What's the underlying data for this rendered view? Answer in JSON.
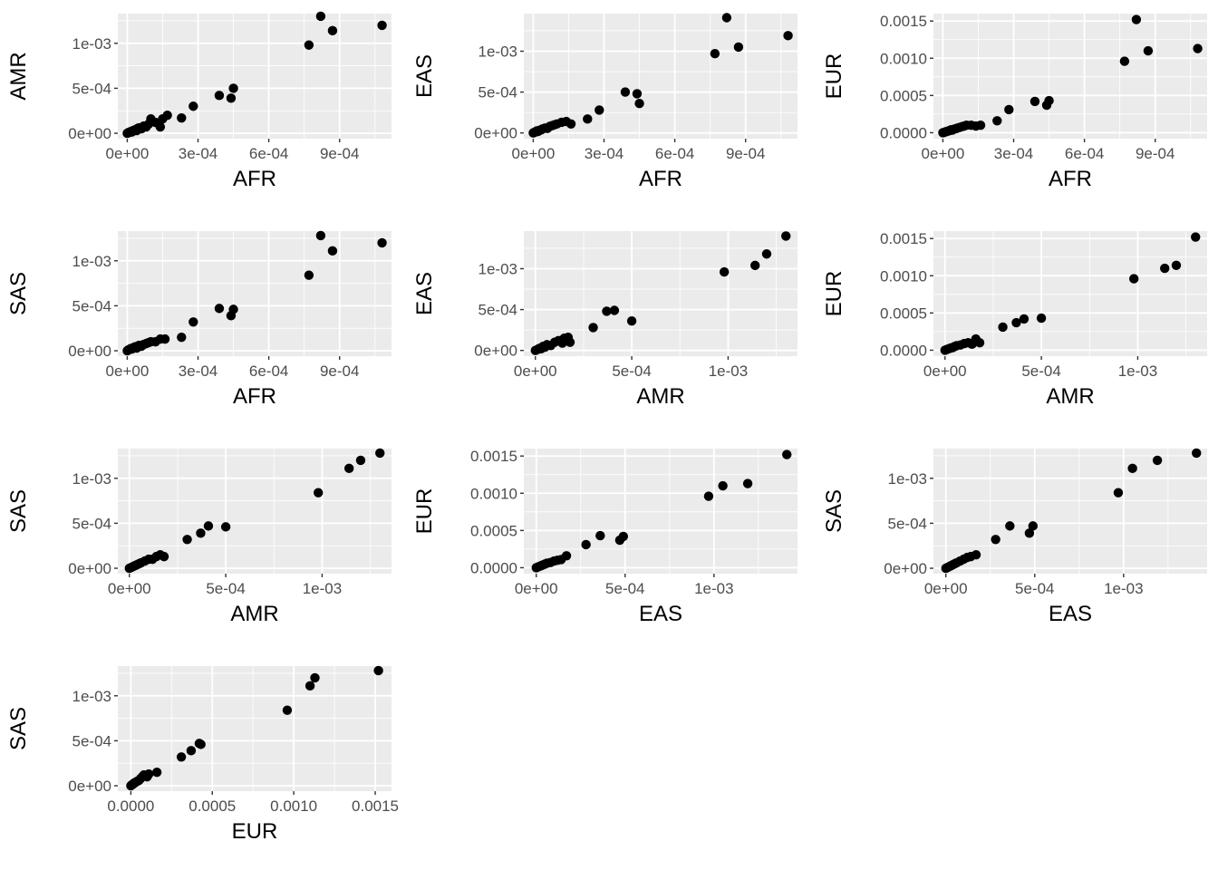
{
  "figure": {
    "panel_background": "#ebebeb",
    "grid_major": "#ffffff",
    "point_color": "#000000"
  },
  "chart_data": [
    {
      "type": "scatter",
      "xlabel": "AFR",
      "ylabel": "AMR",
      "xlim": [
        -4e-05,
        0.00112
      ],
      "ylim": [
        -6e-05,
        0.00133
      ],
      "xticks": [
        0,
        0.0003,
        0.0006,
        0.0009
      ],
      "xtick_labels": [
        "0e+00",
        "3e-04",
        "6e-04",
        "9e-04"
      ],
      "yticks": [
        0,
        0.0005,
        0.001
      ],
      "ytick_labels": [
        "0e+00",
        "5e-04",
        "1e-03"
      ],
      "points": [
        [
          0.0,
          0.0
        ],
        [
          5e-06,
          8e-06
        ],
        [
          1e-05,
          1e-05
        ],
        [
          1.5e-05,
          2e-05
        ],
        [
          2e-05,
          1.5e-05
        ],
        [
          2.5e-05,
          3e-05
        ],
        [
          3e-05,
          3.5e-05
        ],
        [
          3.5e-05,
          4e-05
        ],
        [
          4e-05,
          3e-05
        ],
        [
          4.5e-05,
          5.5e-05
        ],
        [
          5e-05,
          6e-05
        ],
        [
          6e-05,
          5e-05
        ],
        [
          7e-05,
          8e-05
        ],
        [
          8e-05,
          7e-05
        ],
        [
          9e-05,
          0.0001
        ],
        [
          0.0001,
          0.00016
        ],
        [
          0.00012,
          0.00012
        ],
        [
          0.00014,
          7e-05
        ],
        [
          0.00015,
          0.00016
        ],
        [
          0.00017,
          0.0002
        ],
        [
          0.00023,
          0.00017
        ],
        [
          0.00028,
          0.0003
        ],
        [
          0.00039,
          0.00042
        ],
        [
          0.00044,
          0.00039
        ],
        [
          0.00045,
          0.0005
        ],
        [
          0.00077,
          0.00098
        ],
        [
          0.00082,
          0.0013
        ],
        [
          0.00087,
          0.00114
        ],
        [
          0.00108,
          0.0012
        ]
      ]
    },
    {
      "type": "scatter",
      "xlabel": "AFR",
      "ylabel": "EAS",
      "xlim": [
        -4e-05,
        0.00112
      ],
      "ylim": [
        -7e-05,
        0.00146
      ],
      "xticks": [
        0,
        0.0003,
        0.0006,
        0.0009
      ],
      "xtick_labels": [
        "0e+00",
        "3e-04",
        "6e-04",
        "9e-04"
      ],
      "yticks": [
        0,
        0.0005,
        0.001
      ],
      "ytick_labels": [
        "0e+00",
        "5e-04",
        "1e-03"
      ],
      "points": [
        [
          0.0,
          0.0
        ],
        [
          5e-06,
          8e-06
        ],
        [
          1e-05,
          1.2e-05
        ],
        [
          1.5e-05,
          2.5e-05
        ],
        [
          2e-05,
          1.8e-05
        ],
        [
          2.5e-05,
          3e-05
        ],
        [
          3e-05,
          3.5e-05
        ],
        [
          3.5e-05,
          4e-05
        ],
        [
          4e-05,
          5e-05
        ],
        [
          5e-05,
          6e-05
        ],
        [
          6e-05,
          5.5e-05
        ],
        [
          7e-05,
          8e-05
        ],
        [
          8e-05,
          9e-05
        ],
        [
          9e-05,
          0.0001
        ],
        [
          0.0001,
          0.00011
        ],
        [
          0.00012,
          0.00013
        ],
        [
          0.00014,
          0.00014
        ],
        [
          0.00016,
          0.00011
        ],
        [
          0.00023,
          0.00017
        ],
        [
          0.00028,
          0.00028
        ],
        [
          0.00039,
          0.0005
        ],
        [
          0.00044,
          0.00048
        ],
        [
          0.00045,
          0.00036
        ],
        [
          0.00077,
          0.00097
        ],
        [
          0.00082,
          0.00141
        ],
        [
          0.00087,
          0.00105
        ],
        [
          0.00108,
          0.00119
        ]
      ]
    },
    {
      "type": "scatter",
      "xlabel": "AFR",
      "ylabel": "EUR",
      "xlim": [
        -4e-05,
        0.00112
      ],
      "ylim": [
        -8e-05,
        0.0016
      ],
      "xticks": [
        0,
        0.0003,
        0.0006,
        0.0009
      ],
      "xtick_labels": [
        "0e+00",
        "3e-04",
        "6e-04",
        "9e-04"
      ],
      "yticks": [
        0,
        0.0005,
        0.001,
        0.0015
      ],
      "ytick_labels": [
        "0.0000",
        "0.0005",
        "0.0010",
        "0.0015"
      ],
      "points": [
        [
          0.0,
          0.0
        ],
        [
          5e-06,
          5e-06
        ],
        [
          1e-05,
          1e-05
        ],
        [
          1.5e-05,
          1.5e-05
        ],
        [
          2e-05,
          2e-05
        ],
        [
          2.5e-05,
          2.5e-05
        ],
        [
          3e-05,
          3e-05
        ],
        [
          3.5e-05,
          4e-05
        ],
        [
          4e-05,
          3.5e-05
        ],
        [
          5e-05,
          5e-05
        ],
        [
          6e-05,
          6e-05
        ],
        [
          7e-05,
          7e-05
        ],
        [
          8e-05,
          8e-05
        ],
        [
          9e-05,
          9e-05
        ],
        [
          0.0001,
          0.0001
        ],
        [
          0.00012,
          0.0001
        ],
        [
          0.00014,
          9e-05
        ],
        [
          0.00016,
          0.0001
        ],
        [
          0.00023,
          0.00016
        ],
        [
          0.00028,
          0.00031
        ],
        [
          0.00039,
          0.00042
        ],
        [
          0.00044,
          0.00037
        ],
        [
          0.00045,
          0.00043
        ],
        [
          0.00077,
          0.00096
        ],
        [
          0.00082,
          0.00152
        ],
        [
          0.00087,
          0.0011
        ],
        [
          0.00108,
          0.00113
        ]
      ]
    },
    {
      "type": "scatter",
      "xlabel": "AFR",
      "ylabel": "SAS",
      "xlim": [
        -4e-05,
        0.00112
      ],
      "ylim": [
        -6e-05,
        0.00133
      ],
      "xticks": [
        0,
        0.0003,
        0.0006,
        0.0009
      ],
      "xtick_labels": [
        "0e+00",
        "3e-04",
        "6e-04",
        "9e-04"
      ],
      "yticks": [
        0,
        0.0005,
        0.001
      ],
      "ytick_labels": [
        "0e+00",
        "5e-04",
        "1e-03"
      ],
      "points": [
        [
          0.0,
          0.0
        ],
        [
          5e-06,
          1e-05
        ],
        [
          1e-05,
          1.5e-05
        ],
        [
          1.5e-05,
          2.5e-05
        ],
        [
          2e-05,
          2e-05
        ],
        [
          2.5e-05,
          3e-05
        ],
        [
          3e-05,
          4e-05
        ],
        [
          3.5e-05,
          4.5e-05
        ],
        [
          4e-05,
          3e-05
        ],
        [
          5e-05,
          6e-05
        ],
        [
          6e-05,
          5e-05
        ],
        [
          7e-05,
          7e-05
        ],
        [
          8e-05,
          8e-05
        ],
        [
          9e-05,
          9e-05
        ],
        [
          0.0001,
          0.0001
        ],
        [
          0.00012,
          0.0001
        ],
        [
          0.00014,
          0.00013
        ],
        [
          0.00016,
          0.00013
        ],
        [
          0.00023,
          0.00015
        ],
        [
          0.00028,
          0.00032
        ],
        [
          0.00039,
          0.00047
        ],
        [
          0.00044,
          0.00039
        ],
        [
          0.00045,
          0.00046
        ],
        [
          0.00077,
          0.00084
        ],
        [
          0.00082,
          0.00128
        ],
        [
          0.00087,
          0.00111
        ],
        [
          0.00108,
          0.0012
        ]
      ]
    },
    {
      "type": "scatter",
      "xlabel": "AMR",
      "ylabel": "EAS",
      "xlim": [
        -6e-05,
        0.00136
      ],
      "ylim": [
        -7e-05,
        0.00146
      ],
      "xticks": [
        0,
        0.0005,
        0.001
      ],
      "xtick_labels": [
        "0e+00",
        "5e-04",
        "1e-03"
      ],
      "yticks": [
        0,
        0.0005,
        0.001
      ],
      "ytick_labels": [
        "0e+00",
        "5e-04",
        "1e-03"
      ],
      "points": [
        [
          0.0,
          0.0
        ],
        [
          1e-05,
          1e-05
        ],
        [
          2e-05,
          2.5e-05
        ],
        [
          3e-05,
          2e-05
        ],
        [
          4e-05,
          5e-05
        ],
        [
          5e-05,
          4e-05
        ],
        [
          6e-05,
          7e-05
        ],
        [
          8e-05,
          6e-05
        ],
        [
          0.0001,
          0.0001
        ],
        [
          0.00012,
          0.00012
        ],
        [
          0.00014,
          9e-05
        ],
        [
          0.00015,
          0.00015
        ],
        [
          0.00017,
          0.00016
        ],
        [
          0.00018,
          0.0001
        ],
        [
          0.0003,
          0.00028
        ],
        [
          0.00037,
          0.00048
        ],
        [
          0.00041,
          0.00049
        ],
        [
          0.0005,
          0.00036
        ],
        [
          0.00098,
          0.00096
        ],
        [
          0.00114,
          0.00104
        ],
        [
          0.0012,
          0.00118
        ],
        [
          0.0013,
          0.0014
        ]
      ]
    },
    {
      "type": "scatter",
      "xlabel": "AMR",
      "ylabel": "EUR",
      "xlim": [
        -6e-05,
        0.00136
      ],
      "ylim": [
        -8e-05,
        0.0016
      ],
      "xticks": [
        0,
        0.0005,
        0.001
      ],
      "xtick_labels": [
        "0e+00",
        "5e-04",
        "1e-03"
      ],
      "yticks": [
        0,
        0.0005,
        0.001,
        0.0015
      ],
      "ytick_labels": [
        "0.0000",
        "0.0005",
        "0.0010",
        "0.0015"
      ],
      "points": [
        [
          0.0,
          0.0
        ],
        [
          1e-05,
          1e-05
        ],
        [
          2e-05,
          2e-05
        ],
        [
          3e-05,
          3e-05
        ],
        [
          4e-05,
          3.5e-05
        ],
        [
          5e-05,
          5e-05
        ],
        [
          6e-05,
          6e-05
        ],
        [
          8e-05,
          7e-05
        ],
        [
          0.0001,
          9e-05
        ],
        [
          0.00012,
          0.0001
        ],
        [
          0.00014,
          8e-05
        ],
        [
          0.00016,
          0.00015
        ],
        [
          0.00018,
          0.0001
        ],
        [
          0.0003,
          0.00031
        ],
        [
          0.00037,
          0.00037
        ],
        [
          0.00041,
          0.00042
        ],
        [
          0.0005,
          0.00043
        ],
        [
          0.00098,
          0.00096
        ],
        [
          0.00114,
          0.0011
        ],
        [
          0.0012,
          0.00114
        ],
        [
          0.0013,
          0.00152
        ]
      ]
    },
    {
      "type": "scatter",
      "xlabel": "AMR",
      "ylabel": "SAS",
      "xlim": [
        -6e-05,
        0.00136
      ],
      "ylim": [
        -6e-05,
        0.00133
      ],
      "xticks": [
        0,
        0.0005,
        0.001
      ],
      "xtick_labels": [
        "0e+00",
        "5e-04",
        "1e-03"
      ],
      "yticks": [
        0,
        0.0005,
        0.001
      ],
      "ytick_labels": [
        "0e+00",
        "5e-04",
        "1e-03"
      ],
      "points": [
        [
          0.0,
          0.0
        ],
        [
          1e-05,
          1e-05
        ],
        [
          2e-05,
          2e-05
        ],
        [
          3e-05,
          3e-05
        ],
        [
          4e-05,
          4e-05
        ],
        [
          5e-05,
          5e-05
        ],
        [
          6e-05,
          6e-05
        ],
        [
          8e-05,
          8e-05
        ],
        [
          0.0001,
          0.0001
        ],
        [
          0.00012,
          0.0001
        ],
        [
          0.00014,
          0.00013
        ],
        [
          0.00016,
          0.00015
        ],
        [
          0.00018,
          0.00013
        ],
        [
          0.0003,
          0.00032
        ],
        [
          0.00037,
          0.00039
        ],
        [
          0.00041,
          0.00047
        ],
        [
          0.0005,
          0.00046
        ],
        [
          0.00098,
          0.00084
        ],
        [
          0.00114,
          0.00111
        ],
        [
          0.0012,
          0.0012
        ],
        [
          0.0013,
          0.00128
        ]
      ]
    },
    {
      "type": "scatter",
      "xlabel": "EAS",
      "ylabel": "EUR",
      "xlim": [
        -7e-05,
        0.00147
      ],
      "ylim": [
        -8e-05,
        0.0016
      ],
      "xticks": [
        0,
        0.0005,
        0.001
      ],
      "xtick_labels": [
        "0e+00",
        "5e-04",
        "1e-03"
      ],
      "yticks": [
        0,
        0.0005,
        0.001,
        0.0015
      ],
      "ytick_labels": [
        "0.0000",
        "0.0005",
        "0.0010",
        "0.0015"
      ],
      "points": [
        [
          0.0,
          0.0
        ],
        [
          1e-05,
          1e-05
        ],
        [
          2e-05,
          2e-05
        ],
        [
          3e-05,
          3e-05
        ],
        [
          4e-05,
          4e-05
        ],
        [
          5e-05,
          5e-05
        ],
        [
          6e-05,
          6e-05
        ],
        [
          8e-05,
          7e-05
        ],
        [
          0.0001,
          9e-05
        ],
        [
          0.00012,
          0.0001
        ],
        [
          0.00014,
          0.00011
        ],
        [
          0.00017,
          0.00016
        ],
        [
          0.00028,
          0.00031
        ],
        [
          0.00036,
          0.00043
        ],
        [
          0.00047,
          0.00037
        ],
        [
          0.00049,
          0.00042
        ],
        [
          0.00097,
          0.00096
        ],
        [
          0.00105,
          0.0011
        ],
        [
          0.00119,
          0.00113
        ],
        [
          0.00141,
          0.00152
        ]
      ]
    },
    {
      "type": "scatter",
      "xlabel": "EAS",
      "ylabel": "SAS",
      "xlim": [
        -7e-05,
        0.00147
      ],
      "ylim": [
        -6e-05,
        0.00133
      ],
      "xticks": [
        0,
        0.0005,
        0.001
      ],
      "xtick_labels": [
        "0e+00",
        "5e-04",
        "1e-03"
      ],
      "yticks": [
        0,
        0.0005,
        0.001
      ],
      "ytick_labels": [
        "0e+00",
        "5e-04",
        "1e-03"
      ],
      "points": [
        [
          0.0,
          0.0
        ],
        [
          1e-05,
          1e-05
        ],
        [
          2e-05,
          2e-05
        ],
        [
          3e-05,
          3e-05
        ],
        [
          4e-05,
          4e-05
        ],
        [
          5e-05,
          5e-05
        ],
        [
          6e-05,
          6e-05
        ],
        [
          8e-05,
          8e-05
        ],
        [
          0.0001,
          0.0001
        ],
        [
          0.00012,
          0.00012
        ],
        [
          0.00014,
          0.00013
        ],
        [
          0.00017,
          0.00015
        ],
        [
          0.00028,
          0.00032
        ],
        [
          0.00036,
          0.00047
        ],
        [
          0.00047,
          0.00039
        ],
        [
          0.00049,
          0.00047
        ],
        [
          0.00097,
          0.00084
        ],
        [
          0.00105,
          0.00111
        ],
        [
          0.00119,
          0.0012
        ],
        [
          0.00141,
          0.00128
        ]
      ]
    },
    {
      "type": "scatter",
      "xlabel": "EUR",
      "ylabel": "SAS",
      "xlim": [
        -8e-05,
        0.0016
      ],
      "ylim": [
        -6e-05,
        0.00133
      ],
      "xticks": [
        0,
        0.0005,
        0.001,
        0.0015
      ],
      "xtick_labels": [
        "0.0000",
        "0.0005",
        "0.0010",
        "0.0015"
      ],
      "yticks": [
        0,
        0.0005,
        0.001
      ],
      "ytick_labels": [
        "0e+00",
        "5e-04",
        "1e-03"
      ],
      "points": [
        [
          0.0,
          0.0
        ],
        [
          5e-06,
          8e-06
        ],
        [
          1e-05,
          1.5e-05
        ],
        [
          1.5e-05,
          2e-05
        ],
        [
          2e-05,
          3e-05
        ],
        [
          3e-05,
          4e-05
        ],
        [
          4e-05,
          5e-05
        ],
        [
          5e-05,
          6e-05
        ],
        [
          6e-05,
          8e-05
        ],
        [
          7e-05,
          0.0001
        ],
        [
          8e-05,
          0.00012
        ],
        [
          0.0001,
          0.0001
        ],
        [
          0.00011,
          0.00013
        ],
        [
          0.00016,
          0.00015
        ],
        [
          0.00031,
          0.00032
        ],
        [
          0.00037,
          0.00039
        ],
        [
          0.00042,
          0.00047
        ],
        [
          0.00043,
          0.00046
        ],
        [
          0.00096,
          0.00084
        ],
        [
          0.0011,
          0.00111
        ],
        [
          0.00113,
          0.0012
        ],
        [
          0.00152,
          0.00128
        ]
      ]
    }
  ]
}
